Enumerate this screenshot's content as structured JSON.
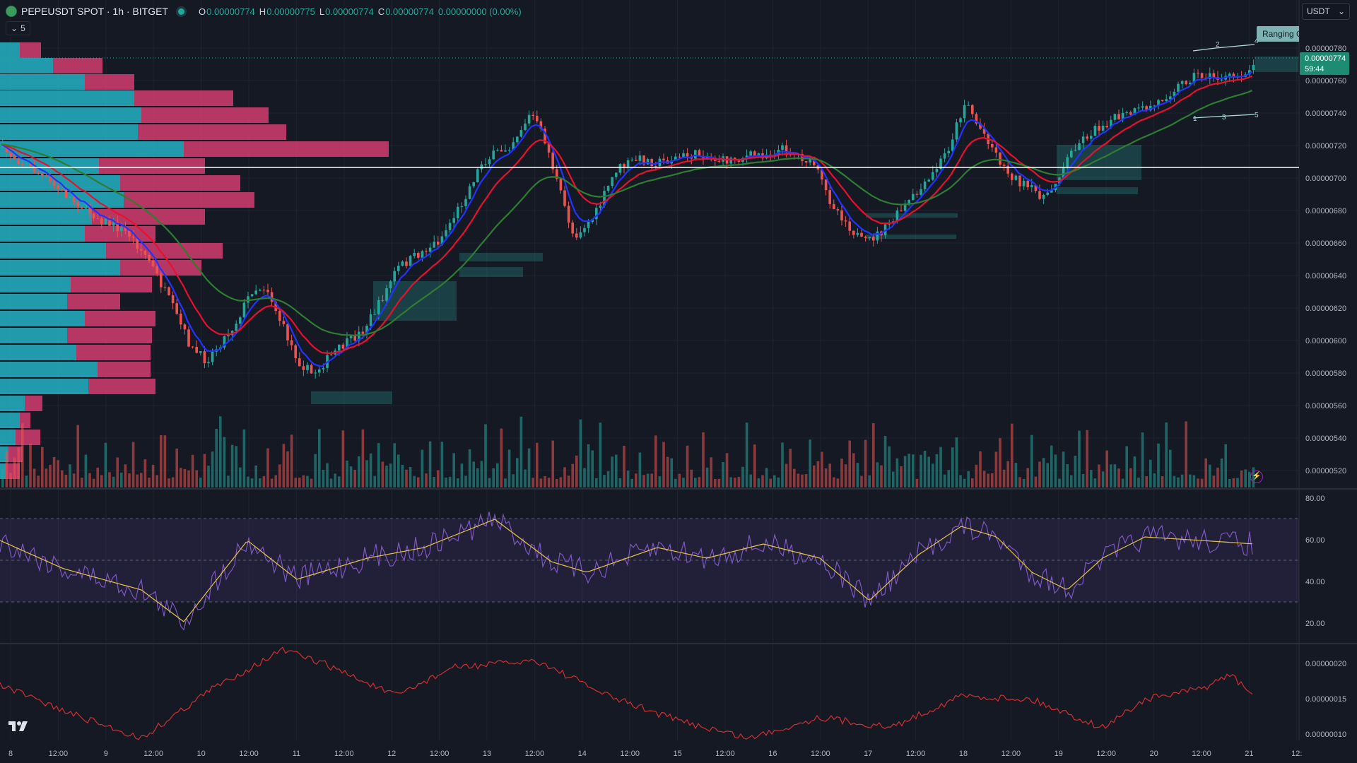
{
  "header": {
    "symbol_title": "PEPEUSDT SPOT · 1h · BITGET",
    "ohlc": [
      {
        "label": "O",
        "value": "0.00000774"
      },
      {
        "label": "H",
        "value": "0.00000775"
      },
      {
        "label": "L",
        "value": "0.00000774"
      },
      {
        "label": "C",
        "value": "0.00000774"
      }
    ],
    "change": "0.00000000 (0.00%)",
    "indicators_toggle": "5"
  },
  "currency_select": "USDT",
  "price_axis": {
    "labels": [
      "0.00000780",
      "0.00000760",
      "0.00000740",
      "0.00000720",
      "0.00000700",
      "0.00000680",
      "0.00000660",
      "0.00000640",
      "0.00000620",
      "0.00000600",
      "0.00000580",
      "0.00000560",
      "0.00000540",
      "0.00000520"
    ]
  },
  "last_price": {
    "value": "0.00000774",
    "countdown": "59:44"
  },
  "ranging_label": "Ranging C",
  "pattern_labels": [
    "1",
    "2",
    "3",
    "4",
    "5"
  ],
  "rsi_axis": {
    "labels": [
      "80.00",
      "60.00",
      "40.00",
      "20.00"
    ]
  },
  "atr_axis": {
    "labels": [
      "0.00000020",
      "0.00000015",
      "0.00000010"
    ]
  },
  "time_axis": {
    "labels": [
      "8",
      "12:00",
      "9",
      "12:00",
      "10",
      "12:00",
      "11",
      "12:00",
      "12",
      "12:00",
      "13",
      "12:00",
      "14",
      "12:00",
      "15",
      "12:00",
      "16",
      "12:00",
      "17",
      "12:00",
      "18",
      "12:00",
      "19",
      "12:00",
      "20",
      "12:00",
      "21",
      "12:"
    ]
  },
  "colors": {
    "background": "#151924",
    "up": "#26a69a",
    "down": "#ef5350",
    "ema_fast": "#2233ff",
    "ema_mid": "#e8112d",
    "ema_slow": "#2e7d32",
    "rsi": "#7e57c2",
    "rsi_ma": "#e6c34a",
    "atr": "#d32f2f"
  },
  "icons": {
    "symbol": "pepe-coin-icon",
    "logo": "tradingview-logo-icon",
    "alert": "lightning-alert-icon",
    "select": "chevron-down-icon"
  }
}
